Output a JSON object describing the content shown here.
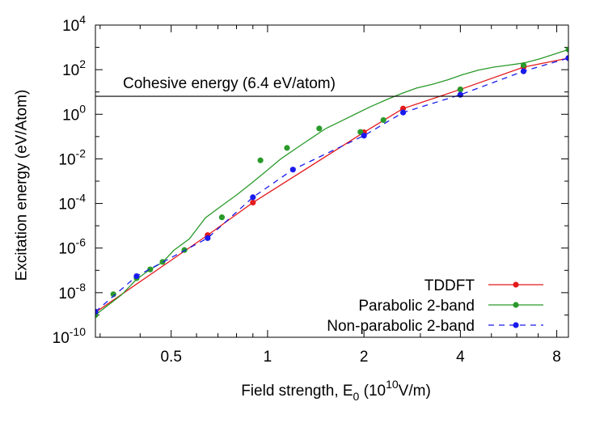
{
  "chart_data": {
    "type": "line",
    "title": "",
    "xlabel": {
      "prefix": "Field strength, E",
      "sub": "0",
      "mid": " (10",
      "sup": "10",
      "suffix": "V/m)"
    },
    "ylabel": "Excitation energy (eV/Atom)",
    "x_scale": "log",
    "y_scale": "log",
    "xlim": [
      0.29,
      8.7
    ],
    "ylim": [
      1e-10,
      10000.0
    ],
    "x_ticks": [
      {
        "value": 0.5,
        "label": "0.5"
      },
      {
        "value": 1,
        "label": "1"
      },
      {
        "value": 2,
        "label": "2"
      },
      {
        "value": 4,
        "label": "4"
      },
      {
        "value": 8,
        "label": "8"
      }
    ],
    "y_ticks": [
      {
        "value": 1e-10,
        "base": "10",
        "exp": "-10"
      },
      {
        "value": 1e-08,
        "base": "10",
        "exp": "-8"
      },
      {
        "value": 1e-06,
        "base": "10",
        "exp": "-6"
      },
      {
        "value": 0.0001,
        "base": "10",
        "exp": "-4"
      },
      {
        "value": 0.01,
        "base": "10",
        "exp": "-2"
      },
      {
        "value": 1,
        "base": "10",
        "exp": "0"
      },
      {
        "value": 100,
        "base": "10",
        "exp": "2"
      },
      {
        "value": 10000,
        "base": "10",
        "exp": "4"
      }
    ],
    "legend_position": "bottom-right",
    "annotations": [
      {
        "type": "hline",
        "y": 6.4,
        "label": "Cohesive energy (6.4 eV/atom)",
        "color": "#000000"
      }
    ],
    "series": [
      {
        "name": "TDDFT",
        "color": "#e41a1c",
        "dash": "solid",
        "x": [
          0.29,
          0.65,
          0.9,
          2.0,
          2.65,
          4.0,
          6.3,
          8.7
        ],
        "y": [
          1.3e-09,
          3.8e-06,
          0.00011,
          0.155,
          1.8,
          13,
          130,
          330
        ]
      },
      {
        "name": "Parabolic 2-band",
        "color": "#2a9a2a",
        "dash": "solid",
        "x": [
          0.29,
          0.35,
          0.39,
          0.43,
          0.47,
          0.51,
          0.57,
          0.64,
          0.72,
          0.8,
          0.89,
          0.99,
          1.1,
          1.23,
          1.37,
          1.52,
          1.7,
          1.9,
          2.1,
          2.35,
          2.62,
          2.92,
          3.27,
          3.65,
          4.07,
          4.55,
          5.08,
          5.67,
          6.32,
          7.05,
          7.87,
          8.7
        ],
        "y": [
          1e-09,
          8e-09,
          4e-08,
          1.1e-07,
          2.3e-07,
          8e-07,
          2.6e-06,
          2.3e-05,
          8e-05,
          0.00024,
          0.0008,
          0.0028,
          0.01,
          0.03,
          0.085,
          0.23,
          0.5,
          1.1,
          2.2,
          4.5,
          8.5,
          15,
          22,
          35,
          60,
          95,
          130,
          160,
          200,
          300,
          500,
          800
        ],
        "markers_x": [
          0.29,
          0.33,
          0.39,
          0.43,
          0.47,
          0.55,
          0.72,
          0.95,
          1.15,
          1.45,
          1.95,
          2.3,
          4.0,
          6.3,
          8.7
        ],
        "markers_y": [
          1e-09,
          8.5e-09,
          4.5e-08,
          1.1e-07,
          2.4e-07,
          8.2e-07,
          2.4e-05,
          0.0086,
          0.031,
          0.23,
          0.16,
          0.55,
          13,
          160,
          800
        ]
      },
      {
        "name": "Non-parabolic 2-band",
        "color": "#1a1aee",
        "dash": "dashed",
        "x": [
          0.29,
          0.39,
          0.65,
          0.9,
          1.2,
          2.0,
          2.65,
          4.0,
          6.3,
          8.7
        ],
        "y": [
          1.4e-09,
          5.5e-08,
          2.8e-06,
          0.00019,
          0.0033,
          0.11,
          1.2,
          7.5,
          85,
          330
        ]
      }
    ]
  }
}
